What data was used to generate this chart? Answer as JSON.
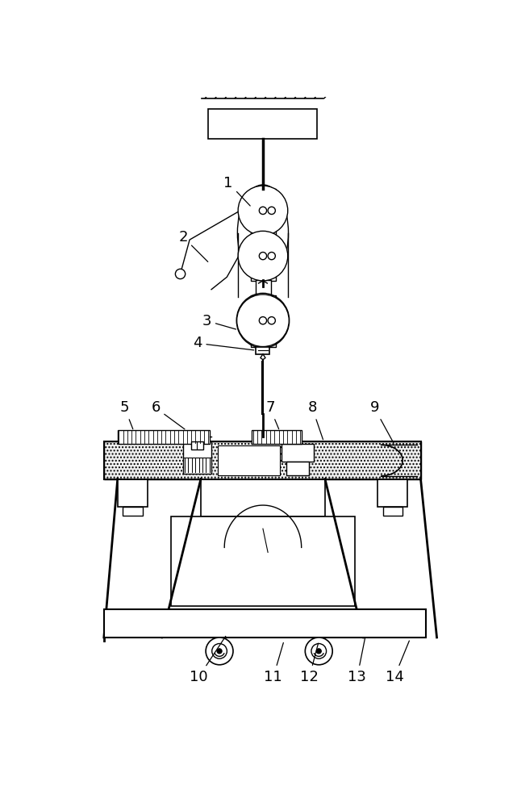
{
  "bg_color": "#ffffff",
  "line_color": "#000000",
  "lw": 1.0
}
